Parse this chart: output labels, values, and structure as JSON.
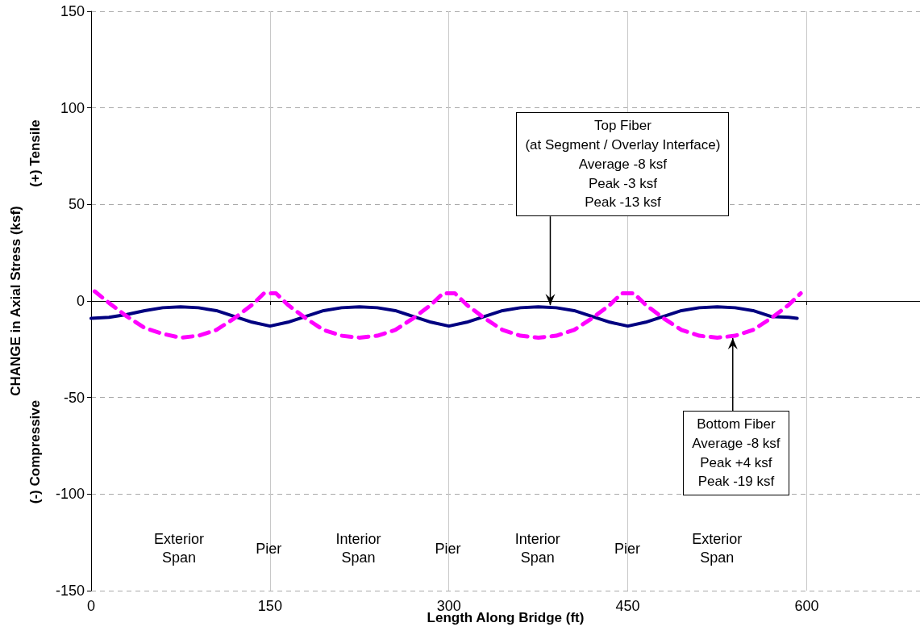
{
  "chart_data": {
    "type": "line",
    "xlabel": "Length Along Bridge (ft)",
    "ylabel": "CHANGE in Axial Stress (ksf)",
    "xlim": [
      0,
      695
    ],
    "xticks": [
      0,
      150,
      300,
      450,
      600
    ],
    "ylim": [
      -150,
      150
    ],
    "yticks": [
      -150,
      -100,
      -50,
      0,
      50,
      100,
      150
    ],
    "grid": true,
    "marker": "none",
    "series": [
      {
        "color": "#000080",
        "line_style": "solid",
        "x": [
          0,
          15,
          30,
          45,
          60,
          75,
          90,
          105,
          120,
          135,
          150,
          165,
          180,
          195,
          210,
          225,
          240,
          255,
          270,
          285,
          300,
          315,
          330,
          345,
          360,
          375,
          390,
          405,
          420,
          435,
          450,
          465,
          480,
          495,
          510,
          525,
          540,
          555,
          570,
          585,
          592
        ],
        "values": [
          -9,
          -8.5,
          -7,
          -5,
          -3.5,
          -3,
          -3.5,
          -5,
          -8,
          -11,
          -13,
          -11,
          -8,
          -5,
          -3.5,
          -3,
          -3.5,
          -5,
          -8,
          -11,
          -13,
          -11,
          -8,
          -5,
          -3.5,
          -3,
          -3.5,
          -5,
          -8,
          -11,
          -13,
          -11,
          -8,
          -5,
          -3.5,
          -3,
          -3.5,
          -5,
          -8,
          -8.5,
          -9
        ]
      },
      {
        "color": "#ff00ff",
        "line_style": "dashed",
        "x": [
          3,
          15,
          30,
          45,
          60,
          75,
          90,
          105,
          120,
          135,
          145,
          155,
          165,
          180,
          195,
          210,
          225,
          240,
          255,
          270,
          285,
          295,
          305,
          315,
          330,
          345,
          360,
          375,
          390,
          405,
          420,
          435,
          445,
          455,
          465,
          480,
          495,
          510,
          525,
          540,
          555,
          570,
          585,
          595
        ],
        "values": [
          5,
          -1,
          -8,
          -14,
          -17,
          -19,
          -18,
          -15,
          -9,
          -2,
          4,
          4,
          -2,
          -9,
          -15,
          -18,
          -19,
          -18,
          -15,
          -9,
          -2,
          4,
          4,
          -2,
          -9,
          -15,
          -18,
          -19,
          -18,
          -15,
          -9,
          -2,
          4,
          4,
          -2,
          -9,
          -15,
          -18,
          -19,
          -18,
          -15,
          -9,
          -2,
          4
        ]
      }
    ],
    "annotations": [
      {
        "text": "Top Fiber\n(at Segment / Overlay Interface)\nAverage -8 ksf\nPeak -3 ksf\nPeak -13 ksf",
        "x": 385,
        "y": -3
      },
      {
        "text": "Bottom Fiber\nAverage -8 ksf\nPeak +4 ksf\nPeak -19 ksf",
        "x": 538,
        "y": -18
      },
      "(+) Tensile",
      "(-) Compressive",
      "Exterior\nSpan",
      "Pier",
      "Interior\nSpan",
      "Pier",
      "Interior\nSpan",
      "Pier",
      "Exterior\nSpan"
    ]
  }
}
